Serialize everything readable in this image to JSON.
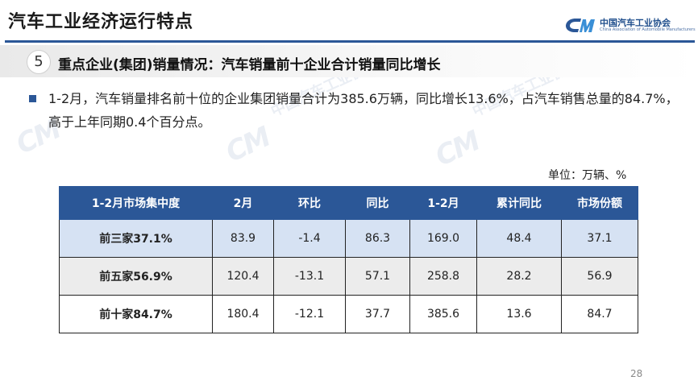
{
  "header": {
    "title": "汽车工业经济运行特点",
    "logo_text": "中国汽车工业协会",
    "logo_subtext": "China Association of Automobile Manufacturers"
  },
  "section": {
    "number": "5",
    "title": "重点企业(集团)销量情况：汽车销量前十企业合计销量同比增长"
  },
  "body": {
    "paragraph": "1-2月，汽车销量排名前十位的企业集团销量合计为385.6万辆，同比增长13.6%，占汽车销售总量的84.7%，高于上年同期0.4个百分点。"
  },
  "table": {
    "unit": "单位：万辆、%",
    "headers": [
      "1-2月市场集中度",
      "2月",
      "环比",
      "同比",
      "1-2月",
      "累计同比",
      "市场份额"
    ],
    "rows": [
      [
        "前三家37.1%",
        "83.9",
        "-1.4",
        "86.3",
        "169.0",
        "48.4",
        "37.1"
      ],
      [
        "前五家56.9%",
        "120.4",
        "-13.1",
        "57.1",
        "258.8",
        "28.2",
        "56.9"
      ],
      [
        "前十家84.7%",
        "180.4",
        "-12.1",
        "37.7",
        "385.6",
        "13.6",
        "84.7"
      ]
    ]
  },
  "watermark": {
    "text": "中国汽车工业协会"
  },
  "footer": {
    "page_number": "28"
  },
  "colors": {
    "accent": "#2b5797",
    "row_highlight": "#d6e2f3",
    "row_gray": "#ececec"
  }
}
